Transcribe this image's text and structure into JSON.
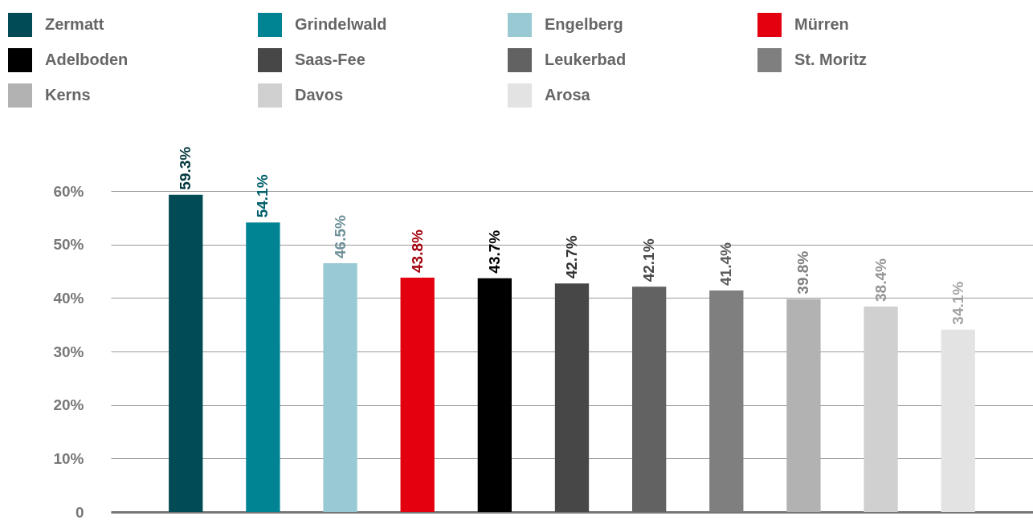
{
  "chart_data": {
    "type": "bar",
    "categories": [
      null,
      null,
      null,
      null,
      null,
      null,
      null,
      null,
      null,
      null,
      null
    ],
    "series": [
      {
        "name": "Zermatt",
        "color": "#004b55",
        "values": [
          59.3,
          null,
          null,
          null,
          null,
          null,
          null,
          null,
          null,
          null,
          null
        ]
      },
      {
        "name": "Grindelwald",
        "color": "#008494",
        "values": [
          null,
          54.1,
          null,
          null,
          null,
          null,
          null,
          null,
          null,
          null,
          null
        ]
      },
      {
        "name": "Engelberg",
        "color": "#99cad4",
        "values": [
          null,
          null,
          46.5,
          null,
          null,
          null,
          null,
          null,
          null,
          null,
          null
        ]
      },
      {
        "name": "Mürren",
        "color": "#e3000f",
        "values": [
          null,
          null,
          null,
          43.8,
          null,
          null,
          null,
          null,
          null,
          null,
          null
        ]
      },
      {
        "name": "Adelboden",
        "color": "#000000",
        "values": [
          null,
          null,
          null,
          null,
          43.7,
          null,
          null,
          null,
          null,
          null,
          null
        ]
      },
      {
        "name": "Saas-Fee",
        "color": "#474747",
        "values": [
          null,
          null,
          null,
          null,
          null,
          42.7,
          null,
          null,
          null,
          null,
          null
        ]
      },
      {
        "name": "Leukerbad",
        "color": "#626262",
        "values": [
          null,
          null,
          null,
          null,
          null,
          null,
          42.1,
          null,
          null,
          null,
          null
        ]
      },
      {
        "name": "St. Moritz",
        "color": "#7f7f7f",
        "values": [
          null,
          null,
          null,
          null,
          null,
          null,
          null,
          41.4,
          null,
          null,
          null
        ]
      },
      {
        "name": "Kerns",
        "color": "#b2b2b2",
        "values": [
          null,
          null,
          null,
          null,
          null,
          null,
          null,
          null,
          39.8,
          null,
          null
        ]
      },
      {
        "name": "Davos",
        "color": "#d0d0d0",
        "values": [
          null,
          null,
          null,
          null,
          null,
          null,
          null,
          null,
          null,
          38.4,
          null
        ]
      },
      {
        "name": "Arosa",
        "color": "#e3e3e3",
        "values": [
          null,
          null,
          null,
          null,
          null,
          null,
          null,
          null,
          null,
          null,
          34.1
        ]
      }
    ],
    "ylim": [
      0,
      60
    ],
    "yticks": [
      0,
      {
        "value": 10,
        "label": "10%"
      },
      {
        "value": 20,
        "label": "20%"
      },
      {
        "value": 30,
        "label": "30%"
      },
      {
        "value": 40,
        "label": "40%"
      },
      {
        "value": 50,
        "label": "50%"
      },
      {
        "value": 60,
        "label": "60%"
      }
    ],
    "value_labels": [
      "59.3%",
      "54.1%",
      "46.5%",
      "43.8%",
      "43.7%",
      "42.7%",
      "42.1%",
      "41.4%",
      "39.8%",
      "38.4%",
      "34.1%"
    ],
    "grid": "y",
    "legend": "top"
  }
}
